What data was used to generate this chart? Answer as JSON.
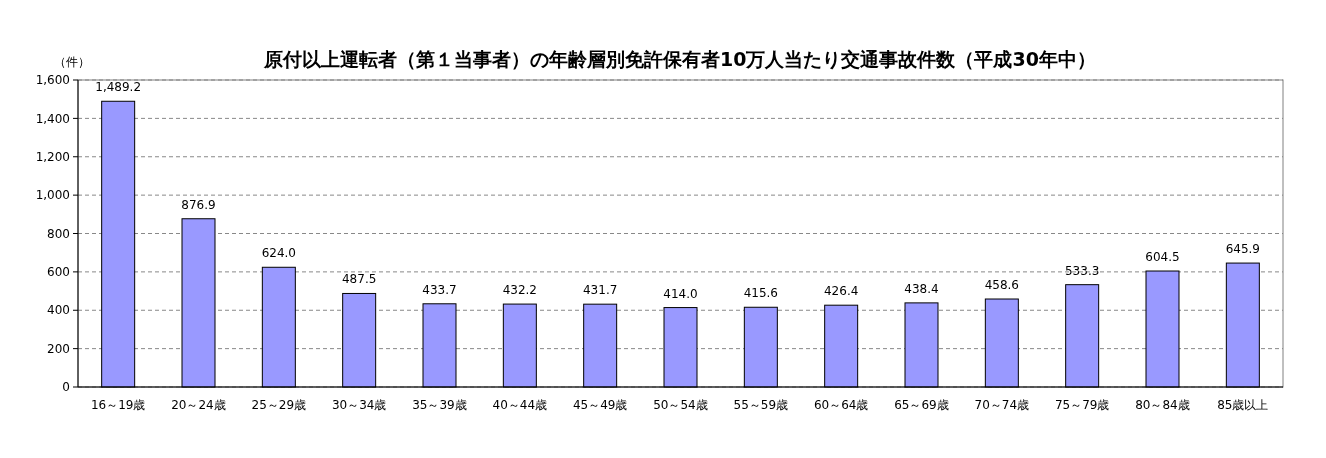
{
  "chart_data": {
    "type": "bar",
    "title": "原付以上運転者（第１当事者）の年齢層別免許保有者10万人当たり交通事故件数（平成30年中）",
    "ylabel": "（件）",
    "categories": [
      "16～19歳",
      "20～24歳",
      "25～29歳",
      "30～34歳",
      "35～39歳",
      "40～44歳",
      "45～49歳",
      "50～54歳",
      "55～59歳",
      "60～64歳",
      "65～69歳",
      "70～74歳",
      "75～79歳",
      "80～84歳",
      "85歳以上"
    ],
    "values": [
      1489.2,
      876.9,
      624.0,
      487.5,
      433.7,
      432.2,
      431.7,
      414.0,
      415.6,
      426.4,
      438.4,
      458.6,
      533.3,
      604.5,
      645.9
    ],
    "value_labels": [
      "1,489.2",
      "876.9",
      "624.0",
      "487.5",
      "433.7",
      "432.2",
      "431.7",
      "414.0",
      "415.6",
      "426.4",
      "438.4",
      "458.6",
      "533.3",
      "604.5",
      "645.9"
    ],
    "color": "#9999ff",
    "ylim": [
      0,
      1600
    ],
    "yticks": [
      0,
      200,
      400,
      600,
      800,
      {
        "value": 1000,
        "label": "1,000"
      },
      {
        "value": 1200,
        "label": "1,200"
      },
      {
        "value": 1400,
        "label": "1,400"
      },
      {
        "value": 1600,
        "label": "1,600"
      }
    ],
    "grid": "y"
  }
}
